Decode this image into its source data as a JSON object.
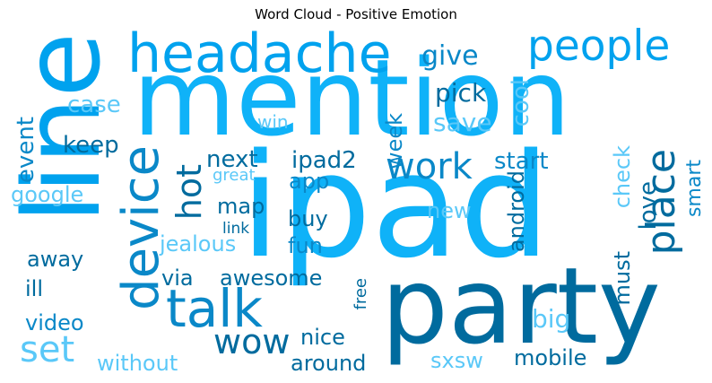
{
  "title": "Word Cloud - Positive Emotion",
  "palette": {
    "dark": "#006b9e",
    "mid": "#0a88c8",
    "blue": "#00a2ee",
    "bright": "#0fb2f8",
    "light": "#5ac8f8"
  },
  "words": {
    "mention": "mention",
    "ipad": "ipad",
    "line": "line",
    "party": "party",
    "headache": "headache",
    "device": "device",
    "talk": "talk",
    "people": "people",
    "place": "place",
    "work": "work",
    "hot": "hot",
    "wow": "wow",
    "set": "set",
    "give": "give",
    "case": "case",
    "pick": "pick",
    "cool": "cool",
    "save": "save",
    "win": "win",
    "keep": "keep",
    "week": "week",
    "event": "event",
    "next": "next",
    "ipad2": "ipad2",
    "start": "start",
    "check": "check",
    "love": "love",
    "great": "great",
    "app": "app",
    "smart": "smart",
    "google": "google",
    "map": "map",
    "android": "android",
    "new": "new",
    "link": "link",
    "buy": "buy",
    "jealous": "jealous",
    "must": "must",
    "fun": "fun",
    "away": "away",
    "via": "via",
    "awesome": "awesome",
    "ill": "ill",
    "free": "free",
    "video": "video",
    "big": "big",
    "nice": "nice",
    "mobile": "mobile",
    "without": "without",
    "around": "around",
    "sxsw": "sxsw"
  }
}
